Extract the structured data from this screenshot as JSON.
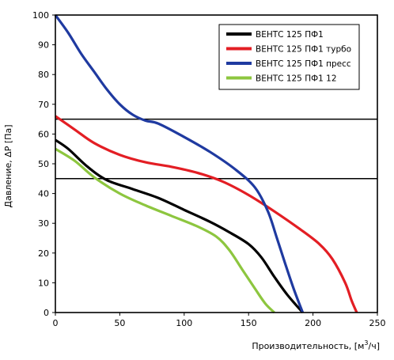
{
  "chart_data": {
    "type": "line",
    "title": "",
    "xlabel": "Производительность, [м³/ч]",
    "xlabel_parts": {
      "main": "Производительность, [м",
      "sup": "3",
      "tail": "/ч]"
    },
    "ylabel": "Давление, ΔР [Па]",
    "xlim": [
      0,
      250
    ],
    "ylim": [
      0,
      100
    ],
    "x_ticks": [
      0,
      50,
      100,
      150,
      200,
      250
    ],
    "y_ticks": [
      0,
      10,
      20,
      30,
      40,
      50,
      60,
      70,
      80,
      90,
      100
    ],
    "horizontal_reference_lines": [
      45,
      65
    ],
    "grid": "horizontal lines at 45 and 65 only",
    "legend_position": "top-right",
    "series": [
      {
        "name": "ВЕНТС 125 ПФ1",
        "color": "#000000",
        "x": [
          0,
          10,
          25,
          40,
          60,
          80,
          100,
          120,
          135,
          150,
          160,
          170,
          180,
          192
        ],
        "y": [
          58,
          55,
          49,
          44.5,
          41.5,
          38.5,
          34.5,
          30.5,
          27,
          23,
          18.5,
          12,
          6,
          0
        ]
      },
      {
        "name": "ВЕНТС 125 ПФ1 турбо",
        "color": "#e31e24",
        "x": [
          0,
          15,
          30,
          50,
          70,
          90,
          110,
          130,
          150,
          170,
          190,
          205,
          215,
          225,
          230,
          234
        ],
        "y": [
          66,
          61.5,
          57,
          53,
          50.5,
          49,
          47,
          44,
          39.5,
          34,
          28,
          23,
          18,
          10,
          4,
          0
        ]
      },
      {
        "name": "ВЕНТС 125 ПФ1 пресс",
        "color": "#1f3aa0",
        "x": [
          0,
          10,
          20,
          30,
          40,
          50,
          60,
          70,
          80,
          100,
          120,
          140,
          155,
          165,
          172,
          178,
          185,
          192
        ],
        "y": [
          100,
          94,
          87,
          81,
          75,
          70,
          66.5,
          64.5,
          63.5,
          59,
          54,
          48,
          42,
          34,
          25,
          17,
          8,
          0
        ]
      },
      {
        "name": "ВЕНТС 125 ПФ1 12",
        "color": "#8dc63f",
        "x": [
          0,
          15,
          30,
          50,
          70,
          90,
          110,
          125,
          135,
          145,
          155,
          163,
          170
        ],
        "y": [
          55,
          51,
          45.5,
          40,
          36,
          32.5,
          29,
          25.5,
          21,
          14.5,
          8,
          3,
          0
        ]
      }
    ]
  }
}
